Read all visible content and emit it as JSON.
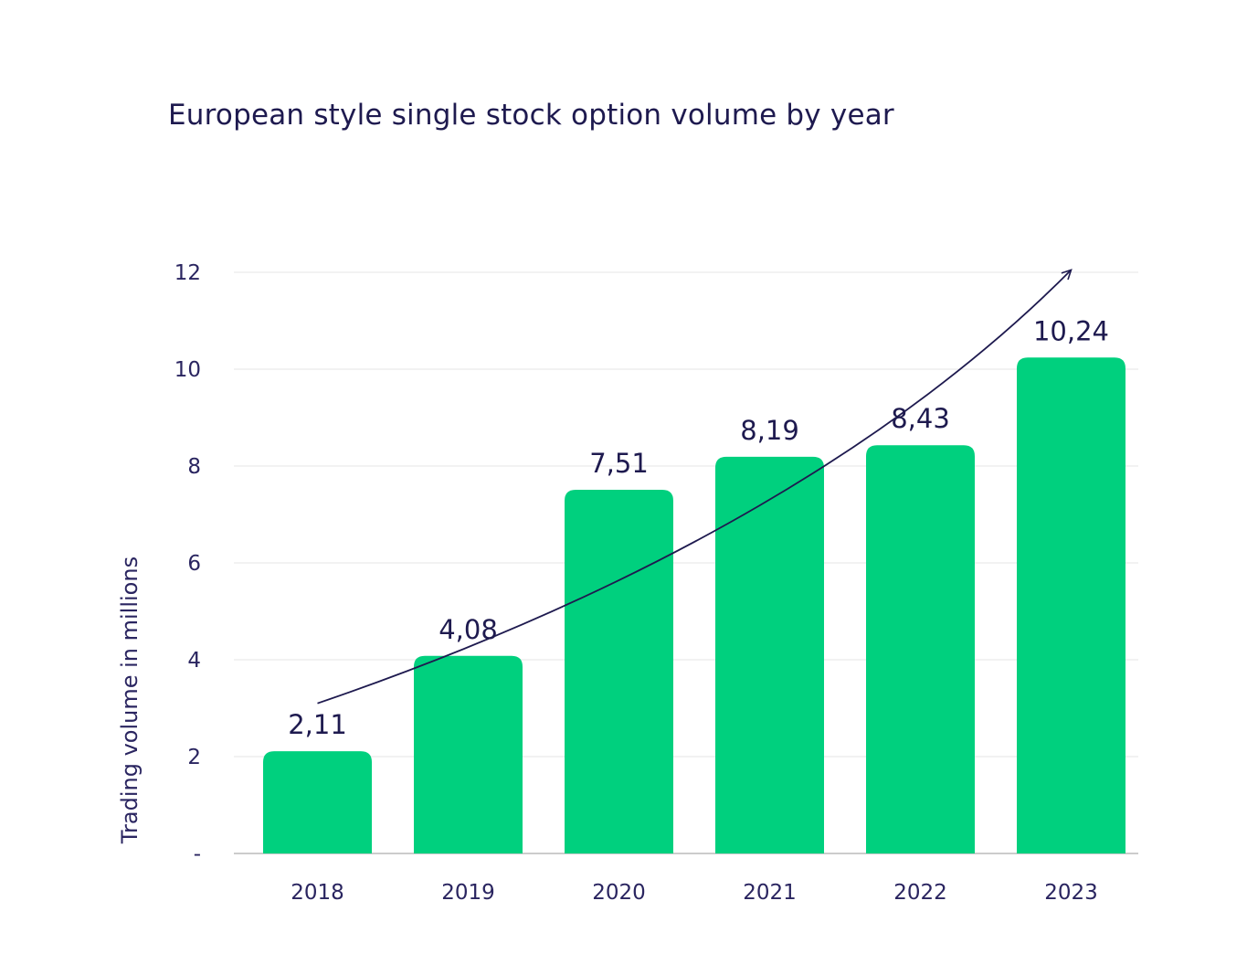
{
  "chart_data": {
    "type": "bar",
    "title": "European style single stock option volume by year",
    "xlabel": "",
    "ylabel": "Trading volume in millions",
    "categories": [
      "2018",
      "2019",
      "2020",
      "2021",
      "2022",
      "2023"
    ],
    "values": [
      2.11,
      4.08,
      7.51,
      8.19,
      8.43,
      10.24
    ],
    "data_labels": [
      "2,11",
      "4,08",
      "7,51",
      "8,19",
      "8,43",
      "10,24"
    ],
    "ylim": [
      0,
      12
    ],
    "y_ticks": [
      0,
      2,
      4,
      6,
      8,
      10,
      12
    ],
    "y_tick_labels": [
      "-",
      "2",
      "4",
      "6",
      "8",
      "10",
      "12"
    ],
    "grid": true,
    "trend_arrow": true,
    "colors": {
      "bar": "#00d07e",
      "text": "#1e1a4f",
      "grid": "#e6e6e6",
      "axis": "#cccccc",
      "arrow": "#1e1a4f"
    }
  }
}
